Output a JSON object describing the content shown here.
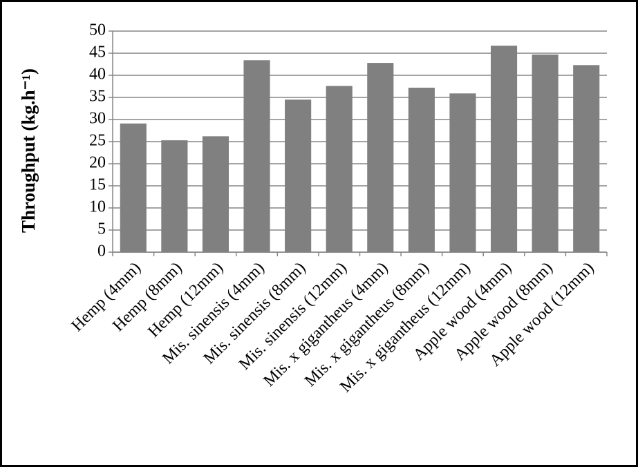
{
  "chart_data": {
    "type": "bar",
    "y_label": "Throughput (kg.h⁻¹)",
    "categories": [
      "Hemp (4mm)",
      "Hemp (8mm)",
      "Hemp (12mm)",
      "Mis. sinensis (4mm)",
      "Mis. sinensis (8mm)",
      "Mis. sinensis (12mm)",
      "Mis. x gigantheus (4mm)",
      "Mis. x gigantheus (8mm)",
      "Mis. x gigantheus (12mm)",
      "Apple wood (4mm)",
      "Apple wood (8mm)",
      "Apple wood (12mm)"
    ],
    "values": [
      29.1,
      25.3,
      26.2,
      43.4,
      34.5,
      37.6,
      42.8,
      37.2,
      35.9,
      46.7,
      44.7,
      42.3
    ],
    "color": "#808080",
    "ylim": [
      0,
      50
    ],
    "yticks": [
      0,
      5,
      10,
      15,
      20,
      25,
      30,
      35,
      40,
      45,
      50
    ],
    "grid": true
  }
}
